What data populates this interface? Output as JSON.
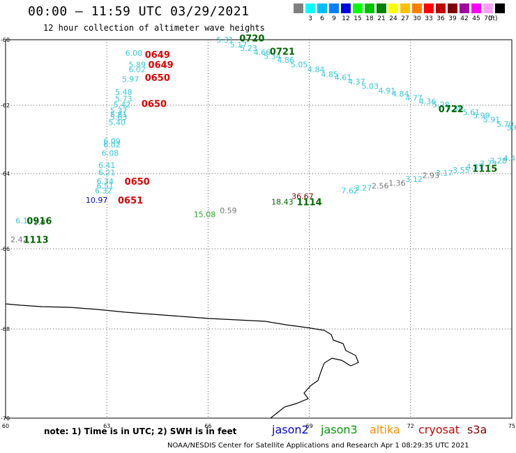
{
  "header": {
    "title": "00:00 — 11:59 UTC 03/29/2021",
    "subtitle": "12 hour collection of altimeter wave heights"
  },
  "color_scale": {
    "unit": "(ft)",
    "steps": [
      {
        "color": "#808080",
        "label": ""
      },
      {
        "color": "#00ffff",
        "label": "3"
      },
      {
        "color": "#00bfff",
        "label": "6"
      },
      {
        "color": "#0080ff",
        "label": "9"
      },
      {
        "color": "#0000e0",
        "label": "12"
      },
      {
        "color": "#00ff00",
        "label": "15"
      },
      {
        "color": "#00c000",
        "label": "18"
      },
      {
        "color": "#008000",
        "label": "21"
      },
      {
        "color": "#ffff00",
        "label": "24"
      },
      {
        "color": "#ffc000",
        "label": "27"
      },
      {
        "color": "#ff8000",
        "label": "30"
      },
      {
        "color": "#ff0000",
        "label": "33"
      },
      {
        "color": "#c00000",
        "label": "36"
      },
      {
        "color": "#800000",
        "label": "39"
      },
      {
        "color": "#a000a0",
        "label": "42"
      },
      {
        "color": "#ff00ff",
        "label": "45"
      },
      {
        "color": "#ffa0ff",
        "label": "70"
      },
      {
        "color": "#000000",
        "label": ""
      }
    ]
  },
  "axes": {
    "x_ticks": [
      {
        "value": 60,
        "label": "60"
      },
      {
        "value": 63,
        "label": "63"
      },
      {
        "value": 66,
        "label": "66"
      },
      {
        "value": 69,
        "label": "69"
      },
      {
        "value": 72,
        "label": "72"
      },
      {
        "value": 75,
        "label": "75"
      }
    ],
    "y_ticks": [
      {
        "value": -60,
        "label": "-60"
      },
      {
        "value": -62,
        "label": "-62"
      },
      {
        "value": -64,
        "label": "-64"
      },
      {
        "value": -66,
        "label": "-66"
      },
      {
        "value": -68,
        "label": "-68"
      },
      {
        "value": -70,
        "label": "-70"
      }
    ]
  },
  "colors": {
    "cyan": "#33c8d8",
    "blue": "#0000cc",
    "green": "#006600",
    "lightgreen": "#22aa22",
    "red": "#dd0000",
    "gray": "#777777",
    "darkred": "#800000",
    "black": "#000000"
  },
  "track_labels": [
    {
      "lon": 64.5,
      "lat": -60.45,
      "text": "0649",
      "color": "red"
    },
    {
      "lon": 64.6,
      "lat": -60.75,
      "text": "0649",
      "color": "red"
    },
    {
      "lon": 64.5,
      "lat": -61.15,
      "text": "0650",
      "color": "red"
    },
    {
      "lon": 64.4,
      "lat": -61.95,
      "text": "0650",
      "color": "red"
    },
    {
      "lon": 63.9,
      "lat": -64.2,
      "text": "0650",
      "color": "red"
    },
    {
      "lon": 63.7,
      "lat": -64.7,
      "text": "0651",
      "color": "red"
    },
    {
      "lon": 67.3,
      "lat": -59.95,
      "text": "0720",
      "color": "green"
    },
    {
      "lon": 68.2,
      "lat": -60.35,
      "text": "0721",
      "color": "green"
    },
    {
      "lon": 73.2,
      "lat": -62.1,
      "text": "0722",
      "color": "green"
    },
    {
      "lon": 74.2,
      "lat": -63.85,
      "text": "1115",
      "color": "green"
    },
    {
      "lon": 69.0,
      "lat": -64.75,
      "text": "1114",
      "color": "green"
    },
    {
      "lon": 61.0,
      "lat": -65.25,
      "text": "0916",
      "color": "green"
    },
    {
      "lon": 60.9,
      "lat": -65.75,
      "text": "1113",
      "color": "green"
    }
  ],
  "swh_values": [
    {
      "lon": 63.8,
      "lat": -60.4,
      "v": "6.00",
      "color": "cyan"
    },
    {
      "lon": 63.9,
      "lat": -60.75,
      "v": "5.89",
      "color": "cyan"
    },
    {
      "lon": 63.9,
      "lat": -60.9,
      "v": "6.02",
      "color": "cyan"
    },
    {
      "lon": 63.7,
      "lat": -61.2,
      "v": "5.97",
      "color": "cyan"
    },
    {
      "lon": 63.5,
      "lat": -61.6,
      "v": "5.48",
      "color": "cyan"
    },
    {
      "lon": 63.5,
      "lat": -61.8,
      "v": "5.73",
      "color": "cyan"
    },
    {
      "lon": 63.45,
      "lat": -61.98,
      "v": "5.42",
      "color": "cyan"
    },
    {
      "lon": 63.35,
      "lat": -62.15,
      "v": "5.37",
      "color": "cyan"
    },
    {
      "lon": 63.35,
      "lat": -62.27,
      "v": "5.81",
      "color": "cyan"
    },
    {
      "lon": 63.35,
      "lat": -62.35,
      "v": "5.63",
      "color": "cyan"
    },
    {
      "lon": 63.3,
      "lat": -62.5,
      "v": "5.40",
      "color": "cyan"
    },
    {
      "lon": 63.15,
      "lat": -63.05,
      "v": "6.09",
      "color": "cyan"
    },
    {
      "lon": 63.15,
      "lat": -63.15,
      "v": "6.02",
      "color": "cyan"
    },
    {
      "lon": 63.1,
      "lat": -63.4,
      "v": "6.08",
      "color": "cyan"
    },
    {
      "lon": 63.0,
      "lat": -63.75,
      "v": "6.41",
      "color": "cyan"
    },
    {
      "lon": 63.0,
      "lat": -63.97,
      "v": "6.21",
      "color": "cyan"
    },
    {
      "lon": 62.95,
      "lat": -64.2,
      "v": "6.34",
      "color": "cyan"
    },
    {
      "lon": 62.95,
      "lat": -64.32,
      "v": "6.51",
      "color": "cyan"
    },
    {
      "lon": 62.9,
      "lat": -64.45,
      "v": "6.32",
      "color": "cyan"
    },
    {
      "lon": 62.7,
      "lat": -64.7,
      "v": "10.97",
      "color": "blue"
    },
    {
      "lon": 66.5,
      "lat": -60.0,
      "v": "5.31",
      "color": "cyan"
    },
    {
      "lon": 66.9,
      "lat": -60.15,
      "v": "5.17",
      "color": "cyan"
    },
    {
      "lon": 67.2,
      "lat": -60.25,
      "v": "5.23",
      "color": "cyan"
    },
    {
      "lon": 67.6,
      "lat": -60.38,
      "v": "4.66",
      "color": "cyan"
    },
    {
      "lon": 67.9,
      "lat": -60.5,
      "v": "5.34",
      "color": "cyan"
    },
    {
      "lon": 68.3,
      "lat": -60.62,
      "v": "4.86",
      "color": "cyan"
    },
    {
      "lon": 68.7,
      "lat": -60.75,
      "v": "5.05",
      "color": "cyan"
    },
    {
      "lon": 69.2,
      "lat": -60.9,
      "v": "4.84",
      "color": "cyan"
    },
    {
      "lon": 69.6,
      "lat": -61.05,
      "v": "4.85",
      "color": "cyan"
    },
    {
      "lon": 70.0,
      "lat": -61.15,
      "v": "4.61",
      "color": "cyan"
    },
    {
      "lon": 70.4,
      "lat": -61.28,
      "v": "4.37",
      "color": "cyan"
    },
    {
      "lon": 70.8,
      "lat": -61.42,
      "v": "5.03",
      "color": "cyan"
    },
    {
      "lon": 71.3,
      "lat": -61.55,
      "v": "4.91",
      "color": "cyan"
    },
    {
      "lon": 71.7,
      "lat": -61.65,
      "v": "4.84",
      "color": "cyan"
    },
    {
      "lon": 72.1,
      "lat": -61.78,
      "v": "4.77",
      "color": "cyan"
    },
    {
      "lon": 72.5,
      "lat": -61.88,
      "v": "4.36",
      "color": "cyan"
    },
    {
      "lon": 72.9,
      "lat": -61.98,
      "v": "5.28",
      "color": "cyan"
    },
    {
      "lon": 73.3,
      "lat": -62.08,
      "v": "5.36",
      "color": "cyan"
    },
    {
      "lon": 73.8,
      "lat": -62.2,
      "v": "5.61",
      "color": "cyan"
    },
    {
      "lon": 74.1,
      "lat": -62.3,
      "v": "5.99",
      "color": "cyan"
    },
    {
      "lon": 74.4,
      "lat": -62.42,
      "v": "5.91",
      "color": "cyan"
    },
    {
      "lon": 74.8,
      "lat": -62.55,
      "v": "5.70",
      "color": "cyan"
    },
    {
      "lon": 75.1,
      "lat": -62.65,
      "v": "5.67",
      "color": "cyan"
    },
    {
      "lon": 75.35,
      "lat": -62.72,
      "v": "4.4",
      "color": "cyan"
    },
    {
      "lon": 75.0,
      "lat": -63.55,
      "v": "4.49",
      "color": "cyan"
    },
    {
      "lon": 74.6,
      "lat": -63.62,
      "v": "3.28",
      "color": "cyan"
    },
    {
      "lon": 74.3,
      "lat": -63.7,
      "v": "3.73",
      "color": "cyan"
    },
    {
      "lon": 73.9,
      "lat": -63.8,
      "v": "4.37",
      "color": "cyan"
    },
    {
      "lon": 73.5,
      "lat": -63.9,
      "v": "3.55",
      "color": "cyan"
    },
    {
      "lon": 73.0,
      "lat": -63.98,
      "v": "3.17",
      "color": "cyan"
    },
    {
      "lon": 72.6,
      "lat": -64.05,
      "v": "2.93",
      "color": "gray"
    },
    {
      "lon": 72.1,
      "lat": -64.15,
      "v": "3.12",
      "color": "cyan"
    },
    {
      "lon": 71.6,
      "lat": -64.25,
      "v": "1.36",
      "color": "gray"
    },
    {
      "lon": 71.1,
      "lat": -64.32,
      "v": "2.56",
      "color": "gray"
    },
    {
      "lon": 70.6,
      "lat": -64.38,
      "v": "3.27",
      "color": "cyan"
    },
    {
      "lon": 70.2,
      "lat": -64.45,
      "v": "7.62",
      "color": "cyan"
    },
    {
      "lon": 68.8,
      "lat": -64.6,
      "v": "36.67",
      "color": "darkred"
    },
    {
      "lon": 68.2,
      "lat": -64.75,
      "v": "18.43",
      "color": "green"
    },
    {
      "lon": 66.6,
      "lat": -64.98,
      "v": "0.59",
      "color": "gray"
    },
    {
      "lon": 65.9,
      "lat": -65.08,
      "v": "15.08",
      "color": "lightgreen"
    },
    {
      "lon": 60.55,
      "lat": -65.25,
      "v": "6.10",
      "color": "cyan"
    },
    {
      "lon": 61.0,
      "lat": -65.3,
      "v": "1.9",
      "color": "gray"
    },
    {
      "lon": 60.4,
      "lat": -65.75,
      "v": "2.42",
      "color": "gray"
    }
  ],
  "footer": {
    "note": "note:  1) Time is in UTC;  2) SWH is in feet",
    "satellites": [
      {
        "name": "jason2",
        "color": "#0000dd"
      },
      {
        "name": "jason3",
        "color": "#009900"
      },
      {
        "name": "altika",
        "color": "#ff8c00"
      },
      {
        "name": "cryosat",
        "color": "#cc0000"
      },
      {
        "name": "s3a",
        "color": "#800000"
      }
    ],
    "credit": "NOAA/NESDIS Center for Satellite Applications and Research    Apr  1 08:29:35 UTC 2021"
  }
}
